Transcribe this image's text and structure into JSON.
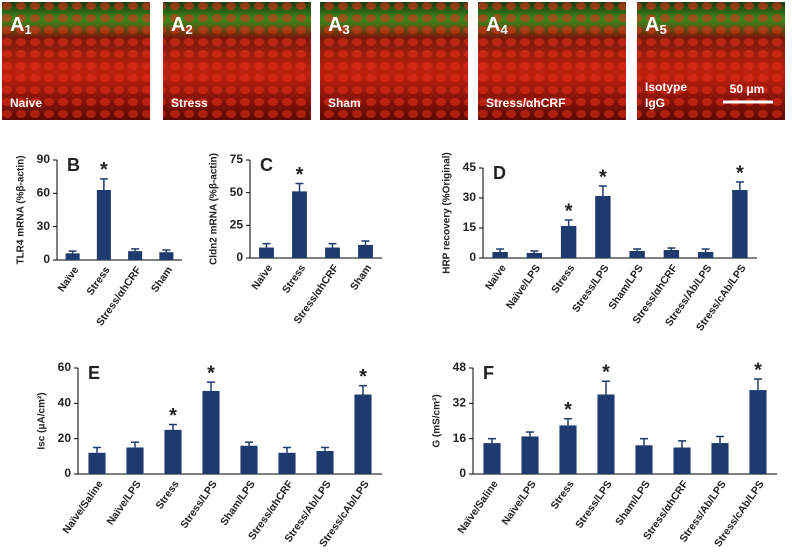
{
  "images": [
    {
      "letter": "A",
      "sub": "1",
      "caption": [
        "Naive"
      ]
    },
    {
      "letter": "A",
      "sub": "2",
      "caption": [
        "Stress"
      ]
    },
    {
      "letter": "A",
      "sub": "3",
      "caption": [
        "Sham"
      ]
    },
    {
      "letter": "A",
      "sub": "4",
      "caption": [
        "Stress/αhCRF"
      ]
    },
    {
      "letter": "A",
      "sub": "5",
      "caption": [
        "Isotype",
        "IgG"
      ],
      "scale_bar": "50 μm"
    }
  ],
  "chart_data": [
    {
      "type": "bar",
      "label": "B",
      "ylabel": "TLR4 mRNA (%β-actin)",
      "categories": [
        "Naïve",
        "Stress",
        "Stress/αhCRF",
        "Sham"
      ],
      "series": [
        {
          "color": "#1f3a6e",
          "values": [
            6,
            63,
            8,
            7
          ],
          "errors": [
            2,
            10,
            2,
            2
          ]
        }
      ],
      "markers": [
        null,
        "*",
        null,
        null
      ],
      "ylim": [
        0,
        90
      ],
      "yticks": [
        0,
        30,
        60,
        90
      ]
    },
    {
      "type": "bar",
      "label": "C",
      "ylabel": "Cldn2 mRNA (%β-actin)",
      "categories": [
        "Naïve",
        "Stress",
        "Stress/αhCRF",
        "Sham"
      ],
      "series": [
        {
          "color": "#1f3a6e",
          "values": [
            8,
            51,
            8,
            10
          ],
          "errors": [
            3,
            6,
            3,
            3
          ]
        }
      ],
      "markers": [
        null,
        "*",
        null,
        null
      ],
      "ylim": [
        0,
        75
      ],
      "yticks": [
        0,
        25,
        50,
        75
      ]
    },
    {
      "type": "bar",
      "label": "D",
      "ylabel": "HRP recovery (%Original)",
      "categories": [
        "Naïve",
        "Naïve/LPS",
        "Stress",
        "Stress/LPS",
        "Sham/LPS",
        "Stress/αhCRF",
        "Stress/Ab/LPS",
        "Stress/cAb/LPS"
      ],
      "series": [
        {
          "color": "#1f3a6e",
          "values": [
            3,
            2.5,
            16,
            31,
            3.5,
            4,
            3,
            34
          ],
          "errors": [
            1.5,
            1,
            3,
            5,
            1,
            1,
            1.5,
            4
          ]
        }
      ],
      "markers": [
        null,
        null,
        "*",
        "*",
        null,
        null,
        null,
        "*"
      ],
      "ylim": [
        0,
        45
      ],
      "yticks": [
        0,
        15,
        30,
        45
      ]
    },
    {
      "type": "bar",
      "label": "E",
      "ylabel": "Isc (μA/cm²)",
      "categories": [
        "Naïve/Saline",
        "Naïve/LPS",
        "Stress",
        "Stress/LPS",
        "Sham/LPS",
        "Stress/αhCRF",
        "Stress/Ab/LPS",
        "Stress/cAb/LPS"
      ],
      "series": [
        {
          "color": "#1f3a6e",
          "values": [
            12,
            15,
            25,
            47,
            16,
            12,
            13,
            45
          ],
          "errors": [
            3,
            3,
            3,
            5,
            2,
            3,
            2,
            5
          ]
        }
      ],
      "markers": [
        null,
        null,
        "*",
        "*",
        null,
        null,
        null,
        "*"
      ],
      "ylim": [
        0,
        60
      ],
      "yticks": [
        0,
        20,
        40,
        60
      ]
    },
    {
      "type": "bar",
      "label": "F",
      "ylabel": "G (mS/cm²)",
      "categories": [
        "Naïve/Saline",
        "Naïve/LPS",
        "Stress",
        "Stress/LPS",
        "Sham/LPS",
        "Stress/αhCRF",
        "Stress/Ab/LPS",
        "Stress/cAb/LPS"
      ],
      "series": [
        {
          "color": "#1f3a6e",
          "values": [
            14,
            17,
            22,
            36,
            13,
            12,
            14,
            38
          ],
          "errors": [
            2,
            2,
            3,
            6,
            3,
            3,
            3,
            5
          ]
        }
      ],
      "markers": [
        null,
        null,
        "*",
        "*",
        null,
        null,
        null,
        "*"
      ],
      "ylim": [
        0,
        48
      ],
      "yticks": [
        0,
        16,
        32,
        48
      ]
    }
  ]
}
